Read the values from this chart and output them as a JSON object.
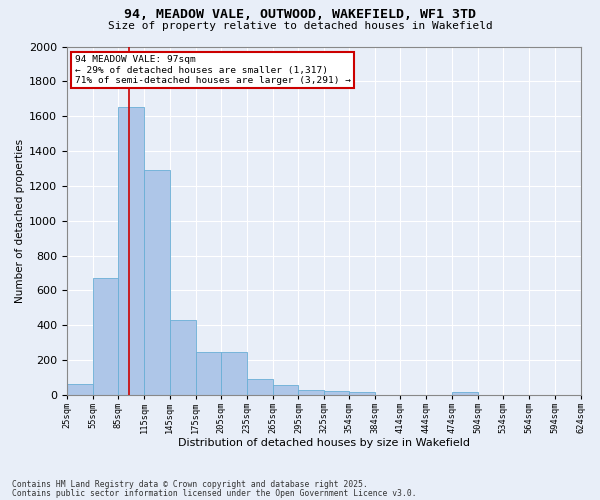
{
  "title_line1": "94, MEADOW VALE, OUTWOOD, WAKEFIELD, WF1 3TD",
  "title_line2": "Size of property relative to detached houses in Wakefield",
  "xlabel": "Distribution of detached houses by size in Wakefield",
  "ylabel": "Number of detached properties",
  "property_size": 97,
  "property_label": "94 MEADOW VALE: 97sqm",
  "annotation_line1": "← 29% of detached houses are smaller (1,317)",
  "annotation_line2": "71% of semi-detached houses are larger (3,291) →",
  "footer_line1": "Contains HM Land Registry data © Crown copyright and database right 2025.",
  "footer_line2": "Contains public sector information licensed under the Open Government Licence v3.0.",
  "bar_color": "#aec6e8",
  "bar_edge_color": "#6aafd6",
  "vline_color": "#cc0000",
  "annotation_box_color": "#cc0000",
  "background_color": "#e8eef8",
  "grid_color": "#ffffff",
  "bin_edges": [
    25,
    55,
    85,
    115,
    145,
    175,
    205,
    235,
    265,
    295,
    325,
    354,
    384,
    414,
    444,
    474,
    504,
    534,
    564,
    594,
    624
  ],
  "bin_labels": [
    "25sqm",
    "55sqm",
    "85sqm",
    "115sqm",
    "145sqm",
    "175sqm",
    "205sqm",
    "235sqm",
    "265sqm",
    "295sqm",
    "325sqm",
    "354sqm",
    "384sqm",
    "414sqm",
    "444sqm",
    "474sqm",
    "504sqm",
    "534sqm",
    "564sqm",
    "594sqm",
    "624sqm"
  ],
  "bar_heights": [
    65,
    670,
    1650,
    1290,
    430,
    245,
    245,
    90,
    55,
    30,
    20,
    15,
    0,
    0,
    0,
    15,
    0,
    0,
    0,
    0
  ],
  "ylim": [
    0,
    2000
  ],
  "yticks": [
    0,
    200,
    400,
    600,
    800,
    1000,
    1200,
    1400,
    1600,
    1800,
    2000
  ]
}
